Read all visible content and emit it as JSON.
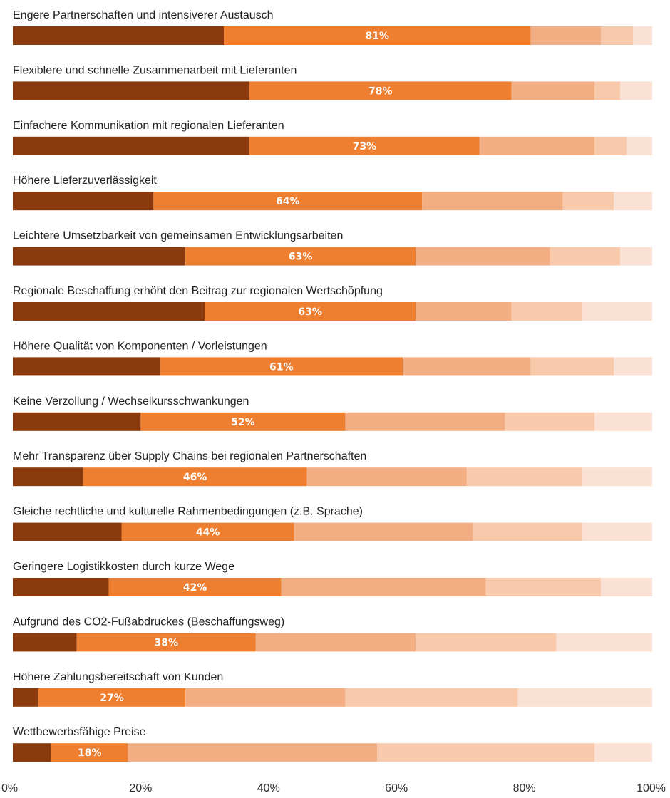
{
  "chart_data": {
    "type": "bar",
    "orientation": "horizontal",
    "stacked": true,
    "title": "",
    "xlabel": "",
    "ylabel": "",
    "xlim": [
      0,
      100
    ],
    "x_ticks": [
      "0%",
      "20%",
      "40%",
      "60%",
      "80%",
      "100%"
    ],
    "grid": false,
    "legend": "none",
    "segment_colors": [
      "#8a3a0c",
      "#ee7f30",
      "#f3af83",
      "#f8c9aa",
      "#fbe0d4"
    ],
    "categories": [
      "Engere Partnerschaften und intensiverer Austausch",
      "Flexiblere und schnelle Zusammenarbeit mit Lieferanten",
      "Einfachere Kommunikation mit regionalen Lieferanten",
      "Höhere Lieferzuverlässigkeit",
      "Leichtere Umsetzbarkeit von gemeinsamen Entwicklungsarbeiten",
      "Regionale Beschaffung erhöht den Beitrag zur regionalen Wertschöpfung",
      "Höhere Qualität von Komponenten / Vorleistungen",
      "Keine Verzollung / Wechselkursschwankungen",
      "Mehr Transparenz über Supply Chains bei regionalen Partnerschaften",
      "Gleiche rechtliche und kulturelle Rahmenbedingungen (z.B. Sprache)",
      "Geringere Logistikkosten durch kurze Wege",
      "Aufgrund des CO2-Fußabdruckes (Beschaffungsweg)",
      "Höhere Zahlungsbereitschaft von Kunden",
      "Wettbewerbsfähige Preise"
    ],
    "value_labels": [
      "81%",
      "78%",
      "73%",
      "64%",
      "63%",
      "63%",
      "61%",
      "52%",
      "46%",
      "44%",
      "42%",
      "38%",
      "27%",
      "18%"
    ],
    "segments": [
      [
        33,
        48,
        11,
        5,
        3
      ],
      [
        37,
        41,
        13,
        4,
        5
      ],
      [
        37,
        36,
        18,
        5,
        4
      ],
      [
        22,
        42,
        22,
        8,
        6
      ],
      [
        27,
        36,
        21,
        11,
        5
      ],
      [
        30,
        33,
        15,
        11,
        11
      ],
      [
        23,
        38,
        20,
        13,
        6
      ],
      [
        20,
        32,
        25,
        14,
        9
      ],
      [
        11,
        35,
        25,
        18,
        11
      ],
      [
        17,
        27,
        28,
        17,
        11
      ],
      [
        15,
        27,
        32,
        18,
        8
      ],
      [
        10,
        28,
        25,
        22,
        15
      ],
      [
        4,
        23,
        25,
        27,
        21
      ],
      [
        6,
        12,
        39,
        34,
        9
      ]
    ]
  }
}
